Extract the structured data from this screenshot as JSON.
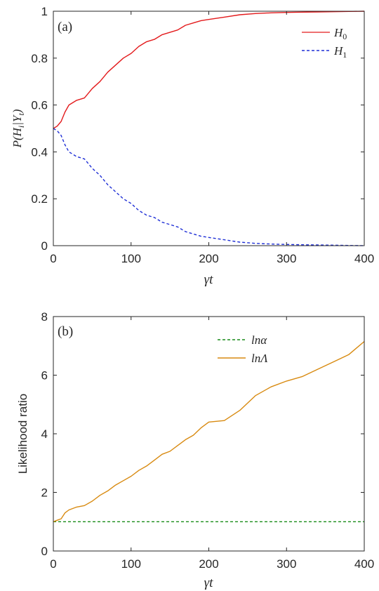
{
  "chart_data": [
    {
      "type": "line",
      "panel_label": "(a)",
      "xlabel": "γt",
      "ylabel": "P(H_i|Y_t)",
      "xlim": [
        0,
        400
      ],
      "ylim": [
        0,
        1
      ],
      "xticks": [
        0,
        100,
        200,
        300,
        400
      ],
      "yticks": [
        0,
        0.2,
        0.4,
        0.6,
        0.8,
        1
      ],
      "ytick_labels": [
        "0",
        "0.2",
        "0.4",
        "0.6",
        "0.8",
        "1"
      ],
      "legend_position": "top-right",
      "x": [
        0,
        5,
        10,
        15,
        20,
        30,
        40,
        50,
        60,
        70,
        80,
        90,
        100,
        110,
        120,
        130,
        140,
        150,
        160,
        170,
        180,
        190,
        200,
        220,
        240,
        260,
        280,
        300,
        320,
        340,
        360,
        380,
        400
      ],
      "series": [
        {
          "name": "H_0",
          "style": "solid",
          "color": "#e31a1c",
          "values": [
            0.5,
            0.51,
            0.53,
            0.57,
            0.6,
            0.62,
            0.63,
            0.67,
            0.7,
            0.74,
            0.77,
            0.8,
            0.82,
            0.85,
            0.87,
            0.88,
            0.9,
            0.91,
            0.92,
            0.94,
            0.95,
            0.96,
            0.965,
            0.975,
            0.985,
            0.99,
            0.993,
            0.995,
            0.996,
            0.997,
            0.998,
            0.999,
            1.0
          ]
        },
        {
          "name": "H_1",
          "style": "dashed",
          "color": "#1f2fd6",
          "values": [
            0.5,
            0.49,
            0.47,
            0.43,
            0.4,
            0.38,
            0.37,
            0.33,
            0.3,
            0.26,
            0.23,
            0.2,
            0.18,
            0.15,
            0.13,
            0.12,
            0.1,
            0.09,
            0.08,
            0.06,
            0.05,
            0.04,
            0.035,
            0.025,
            0.015,
            0.01,
            0.007,
            0.005,
            0.004,
            0.003,
            0.002,
            0.001,
            0.0
          ]
        }
      ]
    },
    {
      "type": "line",
      "panel_label": "(b)",
      "xlabel": "γt",
      "ylabel": "Likelihood ratio",
      "xlim": [
        0,
        400
      ],
      "ylim": [
        0,
        8
      ],
      "xticks": [
        0,
        100,
        200,
        300,
        400
      ],
      "yticks": [
        0,
        2,
        4,
        6,
        8
      ],
      "ytick_labels": [
        "0",
        "2",
        "4",
        "6",
        "8"
      ],
      "legend_position": "top-center",
      "x": [
        0,
        5,
        10,
        15,
        20,
        30,
        40,
        50,
        60,
        70,
        80,
        90,
        100,
        110,
        120,
        130,
        140,
        150,
        160,
        170,
        180,
        190,
        200,
        220,
        240,
        260,
        280,
        300,
        320,
        340,
        360,
        380,
        400
      ],
      "series": [
        {
          "name": "lnα",
          "style": "dashed",
          "color": "#1a8c1a",
          "values": [
            1,
            1,
            1,
            1,
            1,
            1,
            1,
            1,
            1,
            1,
            1,
            1,
            1,
            1,
            1,
            1,
            1,
            1,
            1,
            1,
            1,
            1,
            1,
            1,
            1,
            1,
            1,
            1,
            1,
            1,
            1,
            1,
            1
          ]
        },
        {
          "name": "lnΛ",
          "style": "solid",
          "color": "#d88a10",
          "values": [
            1.0,
            1.05,
            1.1,
            1.3,
            1.4,
            1.5,
            1.55,
            1.7,
            1.9,
            2.05,
            2.25,
            2.4,
            2.55,
            2.75,
            2.9,
            3.1,
            3.3,
            3.4,
            3.6,
            3.8,
            3.95,
            4.2,
            4.4,
            4.45,
            4.8,
            5.3,
            5.6,
            5.8,
            5.95,
            6.2,
            6.45,
            6.7,
            7.15
          ]
        }
      ]
    }
  ]
}
